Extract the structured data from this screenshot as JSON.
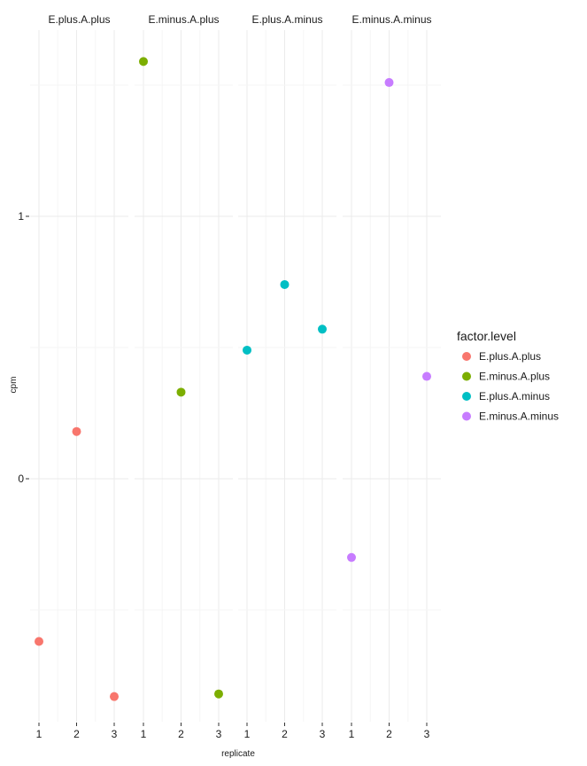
{
  "chart_data": {
    "type": "scatter",
    "facets": [
      "E.plus.A.plus",
      "E.minus.A.plus",
      "E.plus.A.minus",
      "E.minus.A.minus"
    ],
    "xlabel": "replicate",
    "ylabel": "cpm",
    "x_ticks": [
      "1",
      "2",
      "3"
    ],
    "y_ticks": [
      0,
      1
    ],
    "xlim": [
      1,
      3
    ],
    "ylim": [
      -0.93,
      1.65
    ],
    "grid": true,
    "legend": {
      "title": "factor.level",
      "position": "right",
      "entries": [
        {
          "label": "E.plus.A.plus",
          "color": "#F8766D"
        },
        {
          "label": "E.minus.A.plus",
          "color": "#7CAE00"
        },
        {
          "label": "E.plus.A.minus",
          "color": "#00BFC4"
        },
        {
          "label": "E.minus.A.minus",
          "color": "#C77CFF"
        }
      ]
    },
    "series": [
      {
        "name": "E.plus.A.plus",
        "facet": 0,
        "color": "#F8766D",
        "x": [
          1,
          2,
          3
        ],
        "y": [
          -0.62,
          0.18,
          -0.83
        ]
      },
      {
        "name": "E.minus.A.plus",
        "facet": 1,
        "color": "#7CAE00",
        "x": [
          1,
          2,
          3
        ],
        "y": [
          1.59,
          0.33,
          -0.82
        ]
      },
      {
        "name": "E.plus.A.minus",
        "facet": 2,
        "color": "#00BFC4",
        "x": [
          1,
          2,
          3
        ],
        "y": [
          0.49,
          0.74,
          0.57
        ]
      },
      {
        "name": "E.minus.A.minus",
        "facet": 3,
        "color": "#C77CFF",
        "x": [
          1,
          2,
          3
        ],
        "y": [
          -0.3,
          1.51,
          0.39
        ]
      }
    ]
  }
}
